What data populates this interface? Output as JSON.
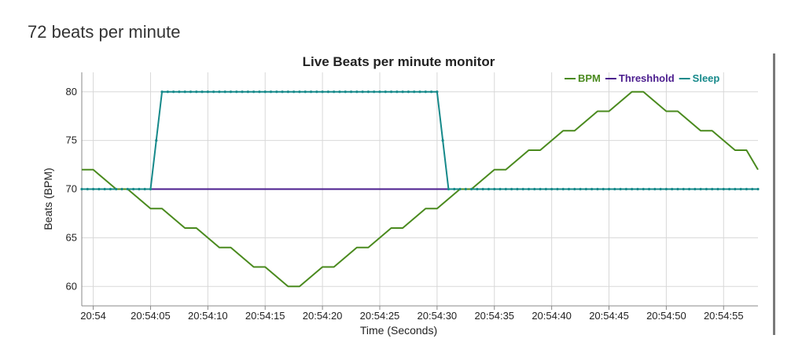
{
  "header": {
    "bpm_text": "72 beats per minute"
  },
  "chart_data": {
    "type": "line",
    "title": "Live Beats per minute monitor",
    "xlabel": "Time (Seconds)",
    "ylabel": "Beats (BPM)",
    "x_tick_labels": [
      "20:54",
      "20:54:05",
      "20:54:10",
      "20:54:15",
      "20:54:20",
      "20:54:25",
      "20:54:30",
      "20:54:35",
      "20:54:40",
      "20:54:45",
      "20:54:50",
      "20:54:55"
    ],
    "x_tick_seconds": [
      0,
      5,
      10,
      15,
      20,
      25,
      30,
      35,
      40,
      45,
      50,
      55
    ],
    "xlim_seconds": [
      -1,
      58
    ],
    "ylim": [
      58,
      82
    ],
    "y_ticks": [
      60,
      65,
      70,
      75,
      80
    ],
    "grid": true,
    "legend_position": "top-right",
    "series": [
      {
        "name": "BPM",
        "color": "#4a8a1e",
        "x_seconds": [
          -1,
          0,
          1,
          2,
          3,
          4,
          5,
          6,
          7,
          8,
          9,
          10,
          11,
          12,
          13,
          14,
          15,
          16,
          17,
          18,
          19,
          20,
          21,
          22,
          23,
          24,
          25,
          26,
          27,
          28,
          29,
          30,
          31,
          32,
          33,
          34,
          35,
          36,
          37,
          38,
          39,
          40,
          41,
          42,
          43,
          44,
          45,
          46,
          47,
          48,
          49,
          50,
          51,
          52,
          53,
          54,
          55,
          56,
          57,
          58
        ],
        "values": [
          72,
          72,
          71,
          70,
          70,
          69,
          68,
          68,
          67,
          66,
          66,
          65,
          64,
          64,
          63,
          62,
          62,
          61,
          60,
          60,
          61,
          62,
          62,
          63,
          64,
          64,
          65,
          66,
          66,
          67,
          68,
          68,
          69,
          70,
          70,
          71,
          72,
          72,
          73,
          74,
          74,
          75,
          76,
          76,
          77,
          78,
          78,
          79,
          80,
          80,
          79,
          78,
          78,
          77,
          76,
          76,
          75,
          74,
          74,
          72
        ]
      },
      {
        "name": "Threshhold",
        "color": "#4b1d8e",
        "x_seconds": [
          -1,
          58
        ],
        "values": [
          70,
          70
        ]
      },
      {
        "name": "Sleep",
        "color": "#16898a",
        "x_seconds": [
          -1,
          5,
          6,
          30,
          31,
          58
        ],
        "values": [
          70,
          70,
          80,
          80,
          70,
          70
        ],
        "marker_start": -1,
        "marker_end": 58
      }
    ]
  }
}
